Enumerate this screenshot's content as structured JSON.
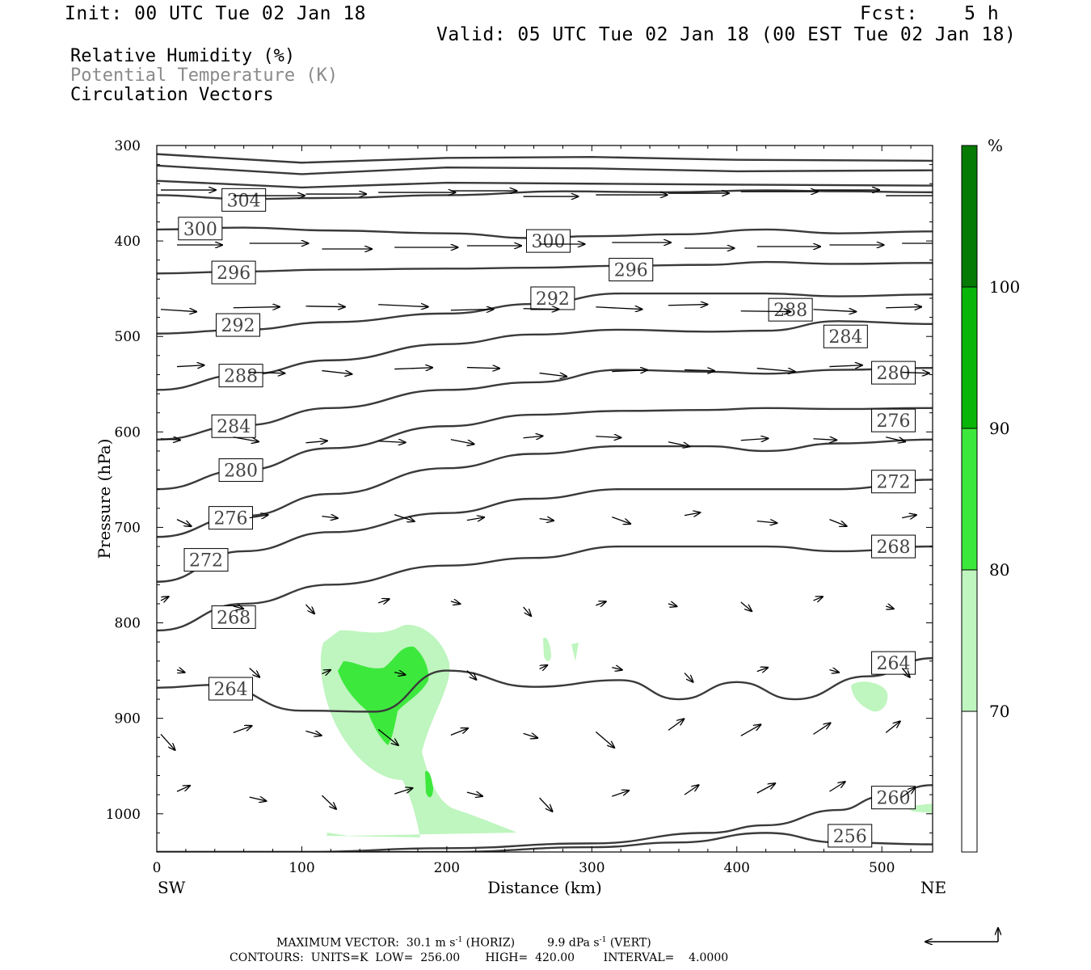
{
  "header": {
    "init": "Init: 00 UTC Tue 02 Jan 18",
    "fcst": "Fcst:    5 h",
    "valid": "Valid: 05 UTC Tue 02 Jan 18 (00 EST Tue 02 Jan 18)"
  },
  "legend": {
    "line1": "Relative Humidity (%)",
    "line2": "Potential Temperature (K)",
    "line3": "Circulation Vectors"
  },
  "footer": {
    "max_vector_label": "MAXIMUM VECTOR:",
    "horiz": "30.1 m s",
    "horiz_unit": "(HORIZ)",
    "vert": "9.9 dPa s",
    "vert_unit": "(VERT)",
    "exp": "-1",
    "contours": "CONTOURS:  UNITS=K  LOW=  256.00       HIGH=  420.00        INTERVAL=    4.0000"
  },
  "colors": {
    "rh70": "#bff5bf",
    "rh80": "#3de83d",
    "rh90": "#0ab50a",
    "rh100": "#057a05",
    "contour": "#3a3a3a"
  },
  "chart_data": {
    "type": "cross-section",
    "xlabel": "Distance (km)",
    "ylabel": "Pressure (hPa)",
    "xlim": [
      0,
      535
    ],
    "ylim": [
      1040,
      300
    ],
    "x_ticks": [
      "0",
      "100",
      "200",
      "300",
      "400",
      "500"
    ],
    "y_ticks": [
      "300",
      "400",
      "500",
      "600",
      "700",
      "800",
      "900",
      "1000"
    ],
    "left_end_label": "SW",
    "right_end_label": "NE",
    "colorbar": {
      "unit": "%",
      "levels": [
        "70",
        "80",
        "90",
        "100"
      ]
    },
    "theta_contours": [
      {
        "value": 304,
        "label": "304",
        "x": [
          0,
          60,
          120,
          200,
          280,
          350,
          420,
          470,
          535
        ],
        "p": [
          352,
          356,
          355,
          352,
          348,
          349,
          347,
          348,
          349
        ]
      },
      {
        "value": 300,
        "label": "300",
        "x": [
          0,
          60,
          120,
          200,
          260,
          300,
          360,
          420,
          470,
          535
        ],
        "p": [
          388,
          386,
          389,
          392,
          397,
          395,
          393,
          388,
          392,
          390
        ]
      },
      {
        "value": 296,
        "label": "296",
        "x": [
          0,
          60,
          120,
          200,
          260,
          320,
          380,
          420,
          470,
          535
        ],
        "p": [
          434,
          432,
          430,
          429,
          428,
          426,
          425,
          422,
          424,
          423
        ]
      },
      {
        "value": 292,
        "label": "292",
        "x": [
          0,
          60,
          120,
          200,
          260,
          320,
          380,
          420,
          470,
          535
        ],
        "p": [
          497,
          493,
          485,
          476,
          466,
          455,
          455,
          455,
          458,
          456
        ]
      },
      {
        "value": 288,
        "label": "288",
        "x": [
          0,
          60,
          120,
          200,
          260,
          320,
          380,
          420,
          470,
          535
        ],
        "p": [
          556,
          540,
          525,
          508,
          498,
          493,
          495,
          494,
          484,
          487
        ]
      },
      {
        "value": 284,
        "label": "284",
        "x": [
          0,
          60,
          120,
          200,
          260,
          320,
          380,
          420,
          470,
          535
        ],
        "p": [
          608,
          593,
          575,
          556,
          548,
          535,
          537,
          539,
          535,
          533
        ]
      },
      {
        "value": 280,
        "label": "280",
        "x": [
          0,
          60,
          120,
          200,
          260,
          320,
          380,
          420,
          470,
          535
        ],
        "p": [
          660,
          640,
          617,
          594,
          582,
          578,
          577,
          575,
          576,
          575
        ]
      },
      {
        "value": 276,
        "label": "276",
        "x": [
          0,
          60,
          120,
          200,
          260,
          320,
          380,
          420,
          470,
          535
        ],
        "p": [
          710,
          688,
          665,
          638,
          623,
          615,
          615,
          620,
          612,
          608
        ]
      },
      {
        "value": 272,
        "label": "272",
        "x": [
          0,
          60,
          120,
          200,
          260,
          320,
          380,
          420,
          470,
          535
        ],
        "p": [
          757,
          725,
          705,
          685,
          670,
          660,
          660,
          660,
          660,
          650
        ]
      },
      {
        "value": 268,
        "label": "268",
        "x": [
          0,
          60,
          120,
          200,
          260,
          320,
          380,
          420,
          470,
          535
        ],
        "p": [
          808,
          780,
          760,
          740,
          732,
          720,
          720,
          720,
          725,
          720
        ]
      },
      {
        "value": 264,
        "label": "264",
        "x": [
          0,
          40,
          100,
          150,
          200,
          260,
          320,
          360,
          400,
          440,
          490,
          535
        ],
        "p": [
          868,
          865,
          892,
          893,
          850,
          867,
          860,
          880,
          862,
          880,
          856,
          837
        ]
      },
      {
        "value": 260,
        "label": "260",
        "x": [
          0,
          100,
          200,
          300,
          380,
          420,
          470,
          500,
          535
        ],
        "p": [
          1040,
          1040,
          1036,
          1031,
          1020,
          1012,
          996,
          982,
          970
        ]
      },
      {
        "value": 256,
        "label": "256",
        "x": [
          0,
          100,
          200,
          300,
          360,
          420,
          470,
          535
        ],
        "p": [
          1040,
          1040,
          1040,
          1035,
          1030,
          1020,
          1030,
          1032
        ]
      }
    ],
    "vectors_note": "circulation vectors (horizontal wind + vertical motion) plotted on a regular grid"
  }
}
